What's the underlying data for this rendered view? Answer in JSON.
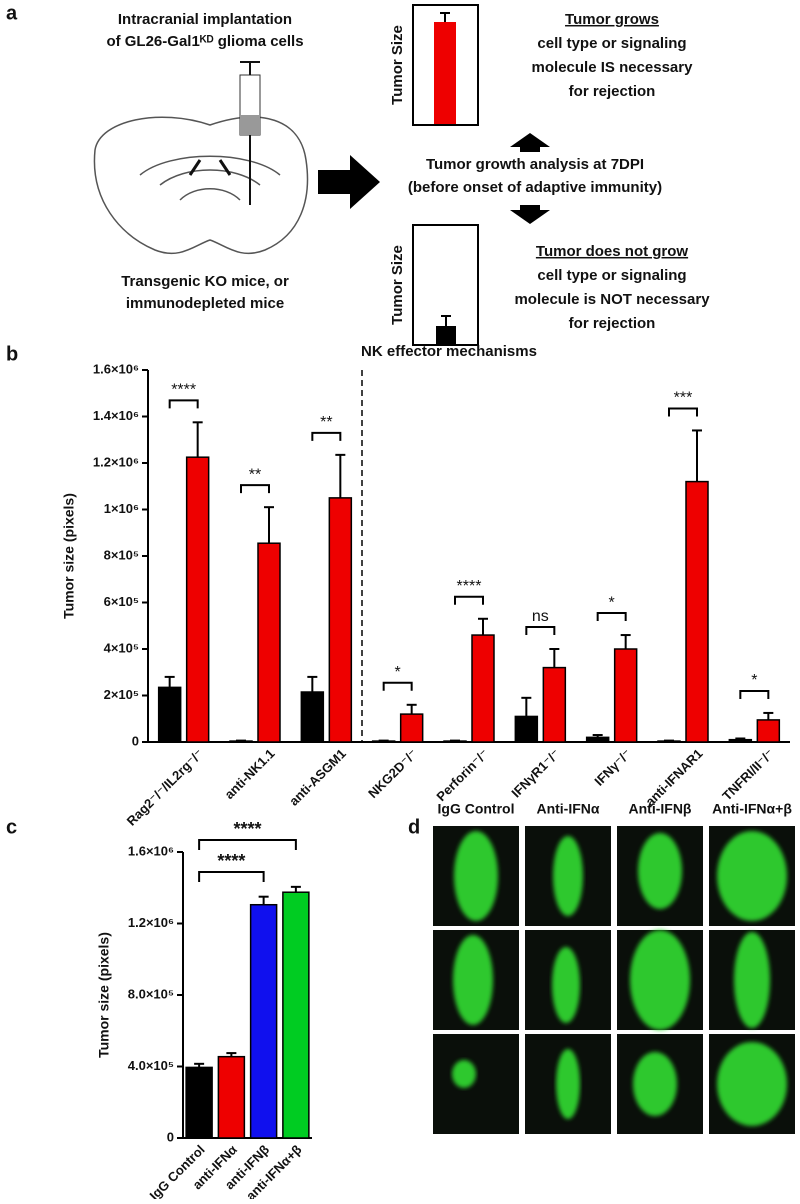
{
  "panel_a": {
    "label": "a",
    "implant": [
      "Intracranial implantation",
      "of GL26-Gal1ᴷᴰ glioma cells"
    ],
    "mice": [
      "Transgenic KO mice, or",
      "immunodepleted mice"
    ],
    "axis_top": "Tumor Size",
    "axis_bottom": "Tumor Size",
    "analysis": [
      "Tumor growth analysis at 7DPI",
      "(before onset of adaptive immunity)"
    ],
    "grows": {
      "heading": "Tumor grows",
      "lines": [
        "cell type or signaling",
        "molecule IS necessary",
        "for rejection"
      ]
    },
    "no_grow": {
      "heading": "Tumor does not grow",
      "lines": [
        "cell type or signaling",
        "molecule is NOT necessary",
        "for rejection"
      ]
    }
  },
  "chart_data": [
    {
      "type": "bar",
      "panel": "b",
      "title": "NK effector mechanisms",
      "y_label": "Tumor size (pixels)",
      "categories": [
        "Rag2⁻/⁻/IL2rg⁻/⁻",
        "anti-NK1.1",
        "anti-ASGM1",
        "NKG2D⁻/⁻",
        "Perforin⁻/⁻",
        "IFNγR1⁻/⁻",
        "IFNγ⁻/⁻",
        "anti-IFNAR1",
        "TNFRI/II⁻/⁻"
      ],
      "series": [
        {
          "color": "#000000",
          "values": [
            235000,
            4000,
            215000,
            4000,
            4000,
            110000,
            20000,
            4000,
            10000
          ],
          "errors": [
            45000,
            2000,
            65000,
            2000,
            2000,
            80000,
            10000,
            2000,
            5000
          ]
        },
        {
          "color": "#ee0000",
          "values": [
            1225000,
            855000,
            1050000,
            120000,
            460000,
            320000,
            400000,
            1120000,
            95000
          ],
          "errors": [
            150000,
            155000,
            185000,
            40000,
            70000,
            80000,
            60000,
            220000,
            30000
          ]
        }
      ],
      "significance": [
        "****",
        "**",
        "**",
        "*",
        "****",
        "ns",
        "*",
        "***",
        "*"
      ],
      "ylim": [
        0,
        1600000
      ],
      "yticks": [
        0,
        {
          "value": 200000,
          "label": "2×10⁵"
        },
        {
          "value": 400000,
          "label": "4×10⁵"
        },
        {
          "value": 600000,
          "label": "6×10⁵"
        },
        {
          "value": 800000,
          "label": "8×10⁵"
        },
        {
          "value": 1000000,
          "label": "1×10⁶"
        },
        {
          "value": 1200000,
          "label": "1.2×10⁶"
        },
        {
          "value": 1400000,
          "label": "1.4×10⁶"
        },
        {
          "value": 1600000,
          "label": "1.6×10⁶"
        }
      ]
    },
    {
      "type": "bar",
      "panel": "c",
      "y_label": "Tumor size (pixels)",
      "categories": [
        "IgG Control",
        "anti-IFNα",
        "anti-IFNβ",
        "anti-IFNα+β"
      ],
      "values": [
        395000,
        455000,
        1305000,
        1375000
      ],
      "errors": [
        20000,
        20000,
        45000,
        30000
      ],
      "colors": [
        "#000000",
        "#ee0000",
        "#1010ee",
        "#00cc22"
      ],
      "significance": [
        "****",
        "****"
      ],
      "ylim": [
        0,
        1600000
      ],
      "yticks": [
        0,
        {
          "value": 400000,
          "label": "4.0×10⁵"
        },
        {
          "value": 800000,
          "label": "8.0×10⁵"
        },
        {
          "value": 1200000,
          "label": "1.2×10⁶"
        },
        {
          "value": 1600000,
          "label": "1.6×10⁶"
        }
      ]
    }
  ],
  "panel_d": {
    "label": "d",
    "columns": [
      "IgG Control",
      "Anti-IFNα",
      "Anti-IFNβ",
      "Anti-IFNα+β"
    ]
  }
}
